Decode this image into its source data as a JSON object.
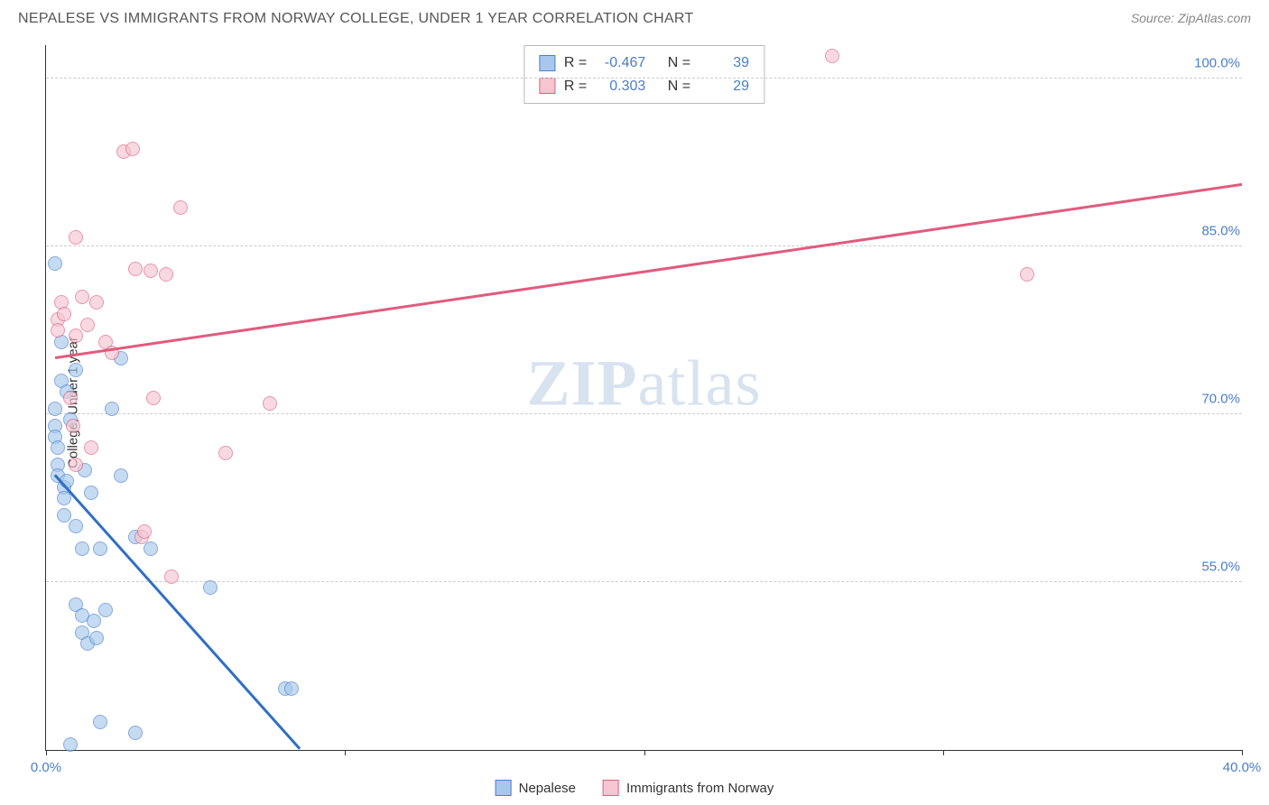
{
  "title": "NEPALESE VS IMMIGRANTS FROM NORWAY COLLEGE, UNDER 1 YEAR CORRELATION CHART",
  "source_label": "Source: ",
  "source_name": "ZipAtlas.com",
  "ylabel": "College, Under 1 year",
  "watermark_bold": "ZIP",
  "watermark_rest": "atlas",
  "chart": {
    "type": "scatter",
    "xlim": [
      0,
      40
    ],
    "ylim": [
      40,
      103
    ],
    "xtick_positions": [
      0,
      10,
      20,
      30,
      40
    ],
    "xtick_labels": [
      "0.0%",
      "",
      "",
      "",
      "40.0%"
    ],
    "ytick_positions": [
      55,
      70,
      85,
      100
    ],
    "ytick_labels": [
      "55.0%",
      "70.0%",
      "85.0%",
      "100.0%"
    ],
    "grid_color": "#cccccc",
    "background_color": "#ffffff",
    "series": [
      {
        "name": "Nepalese",
        "color_fill": "#a6c8ec",
        "color_stroke": "#4a7ec9",
        "r_value": "-0.467",
        "n_value": "39",
        "trend": {
          "x1": 0.3,
          "y1": 64.5,
          "x2": 8.5,
          "y2": 40.0,
          "color": "#2f6fc5"
        },
        "points": [
          [
            0.3,
            83.5
          ],
          [
            0.3,
            70.5
          ],
          [
            0.3,
            69.0
          ],
          [
            0.3,
            68.0
          ],
          [
            0.4,
            67.0
          ],
          [
            0.4,
            65.5
          ],
          [
            0.4,
            64.5
          ],
          [
            0.5,
            76.5
          ],
          [
            0.5,
            73.0
          ],
          [
            0.6,
            63.5
          ],
          [
            0.6,
            62.5
          ],
          [
            0.6,
            61.0
          ],
          [
            0.7,
            64.0
          ],
          [
            0.7,
            72.0
          ],
          [
            0.8,
            69.5
          ],
          [
            0.8,
            40.5
          ],
          [
            1.0,
            74.0
          ],
          [
            1.0,
            60.0
          ],
          [
            1.0,
            53.0
          ],
          [
            1.2,
            58.0
          ],
          [
            1.2,
            52.0
          ],
          [
            1.2,
            50.5
          ],
          [
            1.3,
            65.0
          ],
          [
            1.4,
            49.5
          ],
          [
            1.5,
            63.0
          ],
          [
            1.6,
            51.5
          ],
          [
            1.7,
            50.0
          ],
          [
            1.8,
            58.0
          ],
          [
            1.8,
            42.5
          ],
          [
            2.0,
            52.5
          ],
          [
            2.2,
            70.5
          ],
          [
            2.5,
            75.0
          ],
          [
            2.5,
            64.5
          ],
          [
            3.0,
            59.0
          ],
          [
            3.5,
            58.0
          ],
          [
            3.0,
            41.5
          ],
          [
            5.5,
            54.5
          ],
          [
            8.0,
            45.5
          ],
          [
            8.2,
            45.5
          ]
        ]
      },
      {
        "name": "Immigrants from Norway",
        "color_fill": "#f5c6d2",
        "color_stroke": "#de5f80",
        "r_value": "0.303",
        "n_value": "29",
        "trend": {
          "x1": 0.3,
          "y1": 75.0,
          "x2": 40.0,
          "y2": 90.5,
          "color": "#e15b7e"
        },
        "points": [
          [
            0.4,
            78.5
          ],
          [
            0.4,
            77.5
          ],
          [
            0.5,
            80.0
          ],
          [
            0.6,
            79.0
          ],
          [
            0.8,
            71.5
          ],
          [
            0.9,
            69.0
          ],
          [
            1.0,
            85.8
          ],
          [
            1.0,
            77.0
          ],
          [
            1.2,
            80.5
          ],
          [
            1.4,
            78.0
          ],
          [
            1.5,
            67.0
          ],
          [
            1.7,
            80.0
          ],
          [
            2.0,
            76.5
          ],
          [
            2.2,
            75.5
          ],
          [
            2.6,
            93.5
          ],
          [
            2.9,
            93.7
          ],
          [
            3.0,
            83.0
          ],
          [
            3.2,
            59.0
          ],
          [
            3.5,
            82.8
          ],
          [
            3.6,
            71.5
          ],
          [
            4.0,
            82.5
          ],
          [
            4.5,
            88.5
          ],
          [
            4.2,
            55.5
          ],
          [
            6.0,
            66.5
          ],
          [
            7.5,
            71.0
          ],
          [
            26.3,
            102.0
          ],
          [
            32.8,
            82.5
          ],
          [
            3.3,
            59.5
          ],
          [
            1.0,
            65.5
          ]
        ]
      }
    ],
    "stats_box": {
      "r_label": "R =",
      "n_label": "N ="
    },
    "legend": {
      "items": [
        "Nepalese",
        "Immigrants from Norway"
      ]
    }
  }
}
